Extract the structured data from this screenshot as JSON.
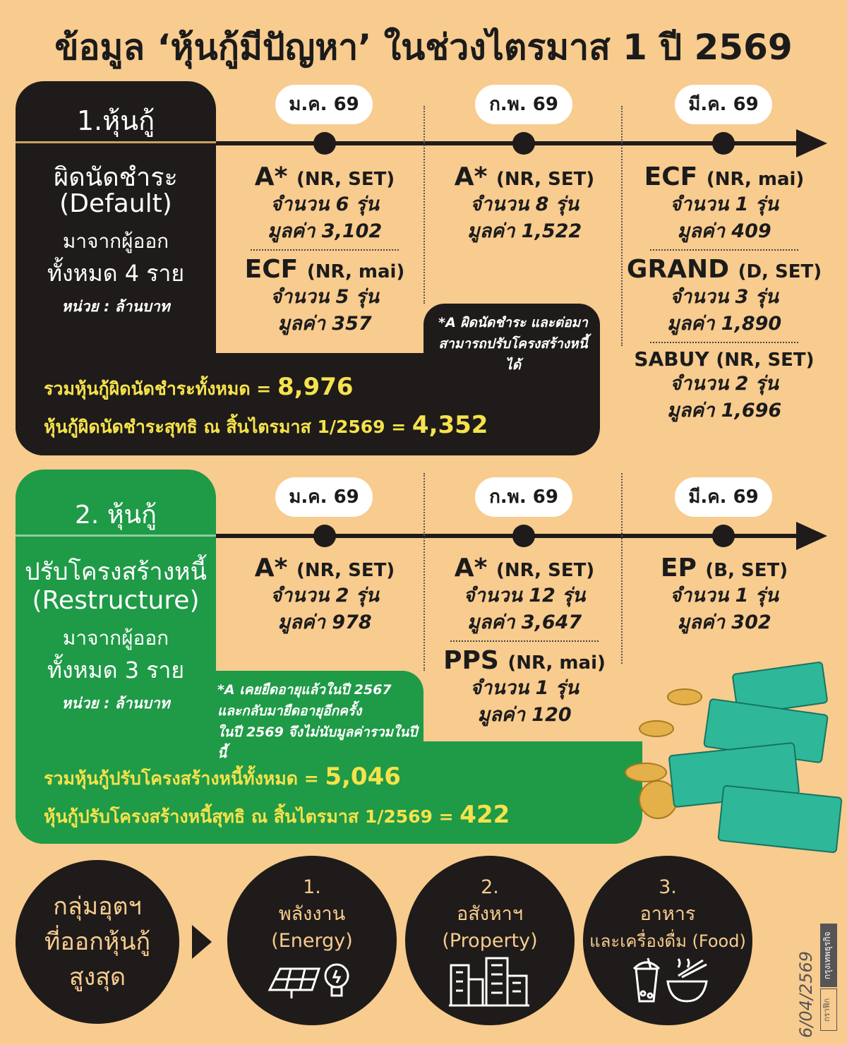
{
  "title": "ข้อมูล ‘หุ้นกู้มีปัญหา’ ในช่วงไตรมาส 1 ปี 2569",
  "section1": {
    "heading": "1.หุ้นกู้",
    "subtitle_th": "ผิดนัดชำระ",
    "subtitle_en": "(Default)",
    "issuers_line1": "มาจากผู้ออก",
    "issuers_line2": "ทั้งหมด 4 ราย",
    "unit": "หน่วย : ล้านบาท",
    "months": [
      "ม.ค. 69",
      "ก.พ. 69",
      "มี.ค. 69"
    ],
    "jan": [
      {
        "name": "A*",
        "tag": "(NR, SET)",
        "count": "จำนวน 6 รุ่น",
        "value": "มูลค่า 3,102"
      },
      {
        "name": "ECF",
        "tag": "(NR, mai)",
        "count": "จำนวน 5 รุ่น",
        "value": "มูลค่า 357"
      }
    ],
    "feb": [
      {
        "name": "A*",
        "tag": "(NR, SET)",
        "count": "จำนวน 8 รุ่น",
        "value": "มูลค่า 1,522"
      }
    ],
    "mar": [
      {
        "name": "ECF",
        "tag": "(NR, mai)",
        "count": "จำนวน 1 รุ่น",
        "value": "มูลค่า 409"
      },
      {
        "name": "GRAND",
        "tag": "(D, SET)",
        "count": "จำนวน 3 รุ่น",
        "value": "มูลค่า 1,890"
      },
      {
        "name": "SABUY",
        "tag": "(NR, SET)",
        "count": "จำนวน 2 รุ่น",
        "value": "มูลค่า 1,696"
      }
    ],
    "note_line1": "*A ผิดนัดชำระ และต่อมา",
    "note_line2": "สามารถปรับโครงสร้างหนี้ได้",
    "total_label": "รวมหุ้นกู้ผิดนัดชำระทั้งหมด = ",
    "total": "8,976",
    "net_label": "หุ้นกู้ผิดนัดชำระสุทธิ ณ สิ้นไตรมาส 1/2569 = ",
    "net": "4,352"
  },
  "section2": {
    "heading": "2. หุ้นกู้",
    "subtitle_th": "ปรับโครงสร้างหนี้",
    "subtitle_en": "(Restructure)",
    "issuers_line1": "มาจากผู้ออก",
    "issuers_line2": "ทั้งหมด 3 ราย",
    "unit": "หน่วย : ล้านบาท",
    "months": [
      "ม.ค. 69",
      "ก.พ. 69",
      "มี.ค. 69"
    ],
    "jan": [
      {
        "name": "A*",
        "tag": "(NR, SET)",
        "count": "จำนวน 2 รุ่น",
        "value": "มูลค่า 978"
      }
    ],
    "feb": [
      {
        "name": "A*",
        "tag": "(NR, SET)",
        "count": "จำนวน 12 รุ่น",
        "value": "มูลค่า 3,647"
      },
      {
        "name": "PPS",
        "tag": "(NR, mai)",
        "count": "จำนวน 1 รุ่น",
        "value": "มูลค่า 120"
      }
    ],
    "mar": [
      {
        "name": "EP",
        "tag": "(B, SET)",
        "count": "จำนวน 1 รุ่น",
        "value": "มูลค่า 302"
      }
    ],
    "note_line1": "*A เคยยืดอายุแล้วในปี 2567",
    "note_line2": "และกลับมายืดอายุอีกครั้ง",
    "note_line3": "ในปี 2569 จึงไม่นับมูลค่ารวมในปีนี้",
    "total_label": "รวมหุ้นกู้ปรับโครงสร้างหนี้ทั้งหมด = ",
    "total": "5,046",
    "net_label": "หุ้นกู้ปรับโครงสร้างหนี้สุทธิ ณ สิ้นไตรมาส 1/2569 = ",
    "net": "422"
  },
  "industries": {
    "intro": [
      "กลุ่มอุตฯ",
      "ที่ออกหุ้นกู้",
      "สูงสุด"
    ],
    "items": [
      {
        "num": "1.",
        "th": "พลังงาน",
        "en": "(Energy)",
        "icon": "solar-panel-bulb-icon"
      },
      {
        "num": "2.",
        "th": "อสังหาฯ",
        "en": "(Property)",
        "icon": "buildings-icon"
      },
      {
        "num": "3.",
        "th": "อาหาร",
        "en": "และเครื่องดื่ม (Food)",
        "icon": "drink-noodle-icon"
      }
    ]
  },
  "credit": {
    "date": "6/04/2569",
    "graphic": "กราฟิก",
    "source": "กรุงเทพธุรกิจ"
  },
  "colors": {
    "background": "#f8cb8e",
    "dark": "#1e1b1a",
    "green": "#1f9a47",
    "highlight": "#f6e24c"
  }
}
